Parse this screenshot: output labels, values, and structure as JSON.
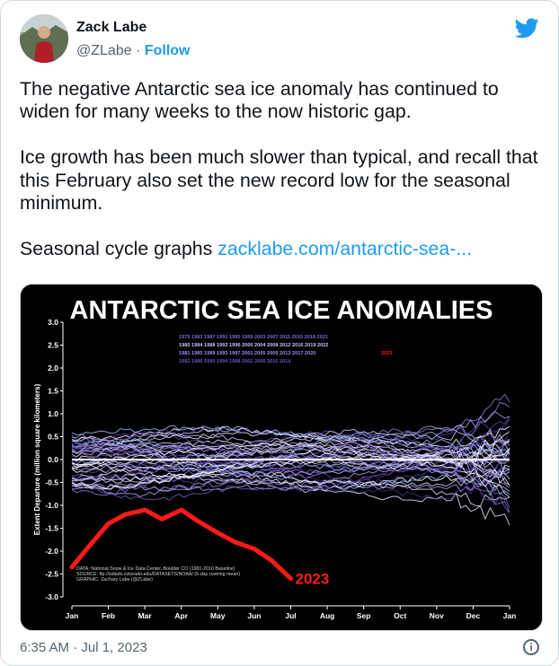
{
  "tweet": {
    "author_name": "Zack Labe",
    "handle": "@ZLabe",
    "separator": " · ",
    "follow_label": "Follow",
    "paragraph1": "The negative Antarctic sea ice anomaly has continued to widen for many weeks to the now historic gap.",
    "paragraph2": "Ice growth has been much slower than typical, and recall that this February also set the new record low for the seasonal minimum.",
    "paragraph3_prefix": "Seasonal cycle graphs ",
    "link_text": "zacklabe.com/antarctic-sea-...",
    "timestamp": "6:35 AM · Jul 1, 2023",
    "info_icon": "i"
  },
  "colors": {
    "link": "#1d9bf0",
    "chart_background": "#000000",
    "record_2023": "#ff1a1a"
  },
  "chart_data": {
    "type": "line",
    "title": "ANTARCTIC SEA ICE ANOMALIES",
    "ylabel": "Extent Departure (million square kilometers)",
    "ylim": [
      -3.0,
      3.0
    ],
    "yticks": [
      "3.0",
      "2.5",
      "2.0",
      "1.5",
      "1.0",
      "0.5",
      "0.0",
      "-0.5",
      "-1.0",
      "-1.5",
      "-2.0",
      "-2.5",
      "-3.0"
    ],
    "xticks": [
      "Jan",
      "Feb",
      "Mar",
      "Apr",
      "May",
      "Jun",
      "Jul",
      "Aug",
      "Sep",
      "Oct",
      "Nov",
      "Dec",
      "Jan"
    ],
    "grid": false,
    "legend_rows": [
      "1979 1983 1987 1991 1995 1999 2003 2007 2011 2015 2018 2021",
      "1980 1984 1988 1992 1996 2000 2004 2008 2012 2016 2019 2022",
      "1981 1985 1989 1993 1997 2001 2005 2009 2013 2017 2020",
      "1982 1986 1990 1994 1998 2002 2006 2010 2014"
    ],
    "legend_row3_extra": "2023",
    "series_2023": {
      "name": "2023",
      "x": [
        "Jan 1",
        "Jan 15",
        "Feb 1",
        "Feb 15",
        "Mar 1",
        "Mar 15",
        "Apr 1",
        "Apr 15",
        "May 1",
        "May 15",
        "Jun 1",
        "Jun 15",
        "Jul 1"
      ],
      "y": [
        -2.35,
        -1.9,
        -1.4,
        -1.2,
        -1.1,
        -1.3,
        -1.1,
        -1.35,
        -1.6,
        -1.8,
        -1.95,
        -2.2,
        -2.6
      ]
    },
    "annotation_2023": "2023",
    "credits": [
      "DATA: National Snow & Ice Data Center, Boulder CO (1981-2010 Baseline)",
      "SOURCE: ftp://sidads.colorado.edu/DATASETS/NOAA/ (5-day running mean)",
      "GRAPHIC: Zachary Labe (@ZLabe)"
    ]
  }
}
